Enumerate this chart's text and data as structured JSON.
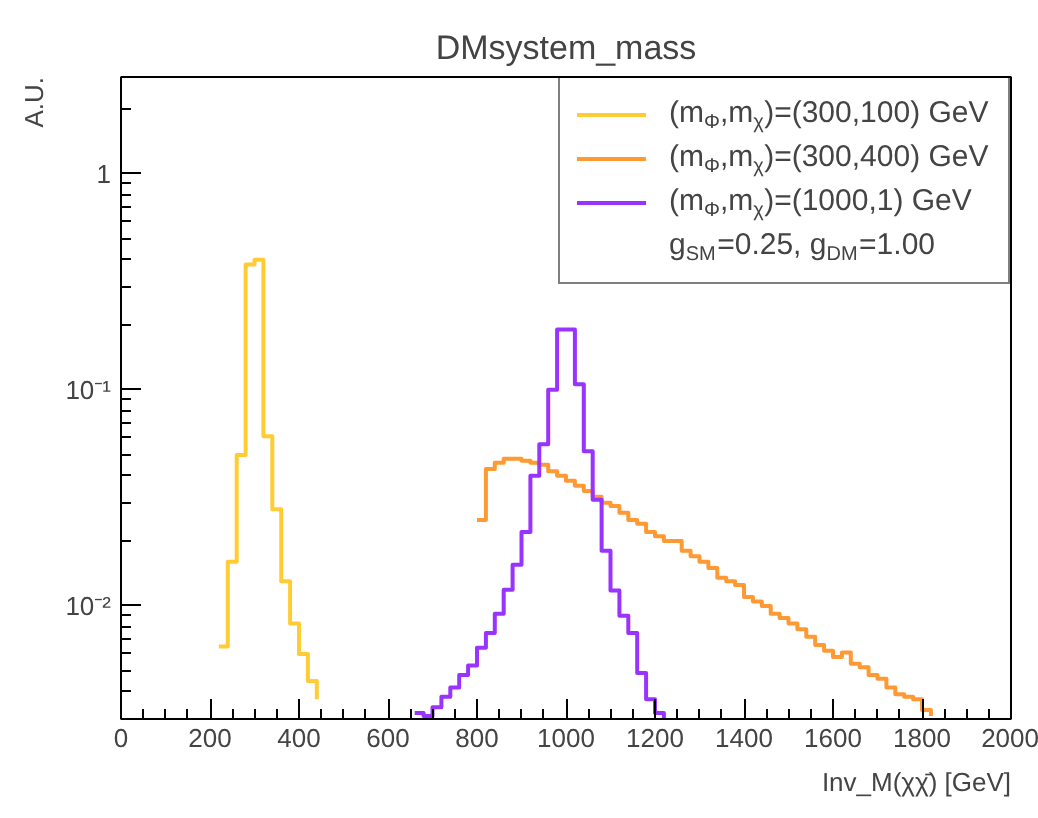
{
  "chart_data": {
    "type": "step",
    "title": "DMsystem_mass",
    "xlabel": "Inv_M(χχ̄) [GeV]",
    "ylabel": "A.U.",
    "xlim": [
      0,
      2000
    ],
    "ylim": [
      0.003,
      2.8
    ],
    "log": "y",
    "xticks": [
      0,
      200,
      400,
      600,
      800,
      1000,
      1200,
      1400,
      1600,
      1800,
      2000
    ],
    "yticks": [
      {
        "value": 0.01,
        "label": "10⁻²"
      },
      {
        "value": 0.1,
        "label": "10⁻¹"
      },
      1
    ],
    "grid": false,
    "legend": "top right",
    "series": [
      {
        "name": "(m$_{Φ}$,m$_{χ}$)=(300,100) GeV",
        "color": "#ffcc33",
        "x": [
          220,
          240,
          260,
          280,
          300,
          320,
          340,
          360,
          380,
          400,
          420,
          440
        ],
        "values": [
          0.0065,
          0.016,
          0.05,
          0.38,
          0.4,
          0.061,
          0.028,
          0.013,
          0.0083,
          0.006,
          0.0045,
          0.0037
        ]
      },
      {
        "name": "(m$_{Φ}$,m$_{χ}$)=(300,400) GeV",
        "color": "#ff9933",
        "x": [
          800,
          820,
          840,
          860,
          880,
          900,
          920,
          940,
          960,
          980,
          1000,
          1020,
          1040,
          1060,
          1080,
          1100,
          1120,
          1140,
          1160,
          1180,
          1200,
          1220,
          1240,
          1260,
          1280,
          1300,
          1320,
          1340,
          1360,
          1380,
          1400,
          1420,
          1440,
          1460,
          1480,
          1500,
          1520,
          1540,
          1560,
          1580,
          1600,
          1620,
          1640,
          1660,
          1680,
          1700,
          1720,
          1740,
          1760,
          1780,
          1800,
          1820
        ],
        "values": [
          0.025,
          0.043,
          0.046,
          0.048,
          0.048,
          0.047,
          0.046,
          0.045,
          0.042,
          0.04,
          0.038,
          0.036,
          0.034,
          0.032,
          0.03,
          0.029,
          0.027,
          0.025,
          0.024,
          0.022,
          0.021,
          0.02,
          0.02,
          0.018,
          0.017,
          0.016,
          0.015,
          0.0135,
          0.013,
          0.0125,
          0.011,
          0.0105,
          0.01,
          0.0092,
          0.0088,
          0.0083,
          0.0078,
          0.0072,
          0.0066,
          0.0062,
          0.0058,
          0.0061,
          0.0054,
          0.0052,
          0.0048,
          0.0046,
          0.0042,
          0.0039,
          0.0038,
          0.0037,
          0.0033,
          0.0031
        ]
      },
      {
        "name": "(m$_{Φ}$,m$_{χ}$)=(1000,1) GeV",
        "color": "#9933ff",
        "x": [
          660,
          680,
          700,
          720,
          740,
          760,
          780,
          800,
          820,
          840,
          860,
          880,
          900,
          920,
          940,
          960,
          980,
          1000,
          1020,
          1040,
          1060,
          1080,
          1100,
          1120,
          1140,
          1160,
          1180,
          1200,
          1220
        ],
        "values": [
          0.0032,
          0.0031,
          0.0034,
          0.0038,
          0.0042,
          0.0048,
          0.0053,
          0.0064,
          0.0075,
          0.0092,
          0.0119,
          0.0155,
          0.022,
          0.04,
          0.056,
          0.1,
          0.19,
          0.19,
          0.106,
          0.052,
          0.031,
          0.018,
          0.0118,
          0.009,
          0.0075,
          0.0049,
          0.0037,
          0.0032,
          0.003
        ]
      }
    ],
    "annotations": [
      "g$_{SM}$=0.25, g$_{DM}$=1.00"
    ]
  }
}
